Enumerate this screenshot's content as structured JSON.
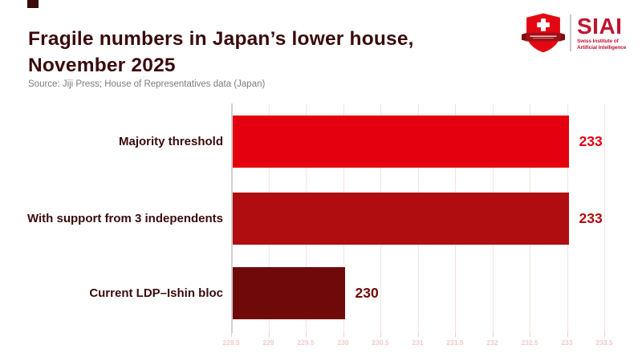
{
  "header": {
    "title_line1": "Fragile numbers in Japan’s lower house,",
    "title_line2": "November 2025",
    "title_color": "#3a0b0b",
    "source": "Source: Jiji Press; House of Representatives data (Japan)"
  },
  "logo": {
    "acronym": "SIAI",
    "subtitle_line1": "Swiss Institute of",
    "subtitle_line2": "Artificial Intelligence",
    "brand_red": "#c41230",
    "shield_red": "#e30613",
    "banner_dark_red": "#9e1116"
  },
  "chart_data": {
    "type": "bar",
    "orientation": "horizontal",
    "categories": [
      "Majority threshold",
      "With support from 3 independents",
      "Current LDP–Ishin bloc"
    ],
    "values": [
      233,
      233,
      230
    ],
    "value_labels": [
      "233",
      "233",
      "230"
    ],
    "bar_colors": [
      "#e4000f",
      "#b00d10",
      "#700a0a"
    ],
    "label_color": "#3a0b0b",
    "xlim": [
      228.5,
      233.5
    ],
    "xtick_labels": [
      "228.5",
      "229",
      "229.5",
      "230",
      "230.5",
      "231",
      "231.5",
      "232",
      "232.5",
      "233",
      "233.5"
    ],
    "xtick_color": "#f2c9c9",
    "gridline_color": "#f8e1e1",
    "axis_line_color": "#cfcfcf",
    "grid": "vertical gridlines at 0.5 intervals",
    "legend": "none",
    "title": "Fragile numbers in Japan’s lower house, November 2025"
  }
}
